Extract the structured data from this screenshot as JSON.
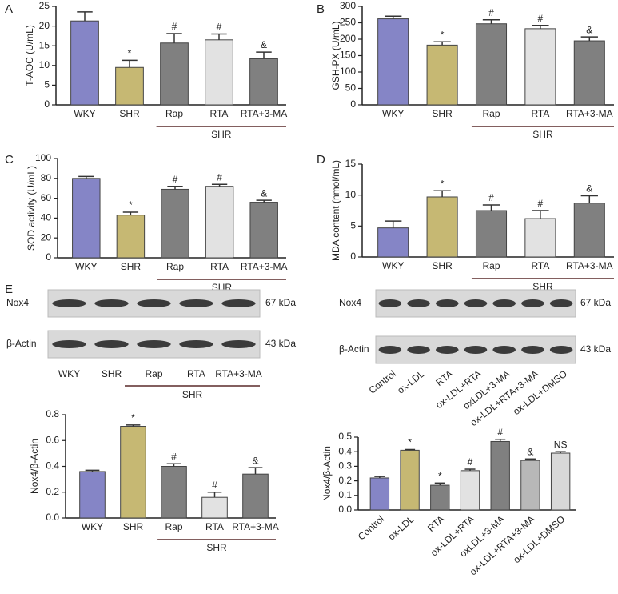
{
  "panels": [
    "A",
    "B",
    "C",
    "D",
    "E"
  ],
  "chart_data": [
    {
      "type": "bar",
      "ylabel": "T-AOC (U/mL)",
      "categories": [
        "WKY",
        "SHR",
        "Rap",
        "RTA",
        "RTA+3-MA"
      ],
      "group_label": "SHR",
      "values": [
        21.3,
        9.5,
        15.7,
        16.5,
        11.7
      ],
      "errors": [
        2.3,
        1.8,
        2.4,
        1.5,
        1.7
      ],
      "markers": [
        null,
        "*",
        "#",
        "#",
        "&"
      ],
      "colors": [
        "#8585c6",
        "#c6b873",
        "#808080",
        "#e2e2e2",
        "#808080"
      ],
      "ylim": [
        0,
        25
      ],
      "yticks": [
        0,
        5,
        10,
        15,
        20,
        25
      ]
    },
    {
      "type": "bar",
      "ylabel": "GSH-PX (U/mL)",
      "categories": [
        "WKY",
        "SHR",
        "Rap",
        "RTA",
        "RTA+3-MA"
      ],
      "group_label": "SHR",
      "values": [
        262,
        182,
        247,
        232,
        195
      ],
      "errors": [
        8,
        10,
        12,
        10,
        12
      ],
      "markers": [
        null,
        "*",
        "#",
        "#",
        "&"
      ],
      "colors": [
        "#8585c6",
        "#c6b873",
        "#808080",
        "#e2e2e2",
        "#808080"
      ],
      "ylim": [
        0,
        300
      ],
      "yticks": [
        0,
        50,
        100,
        150,
        200,
        250,
        300
      ]
    },
    {
      "type": "bar",
      "ylabel": "SOD activity (U/mL)",
      "categories": [
        "WKY",
        "SHR",
        "Rap",
        "RTA",
        "RTA+3-MA"
      ],
      "group_label": "SHR",
      "values": [
        80,
        43,
        69,
        72,
        56
      ],
      "errors": [
        2,
        3,
        3,
        2,
        2
      ],
      "markers": [
        null,
        "*",
        "#",
        "#",
        "&"
      ],
      "colors": [
        "#8585c6",
        "#c6b873",
        "#808080",
        "#e2e2e2",
        "#808080"
      ],
      "ylim": [
        0,
        100
      ],
      "yticks": [
        0,
        20,
        40,
        60,
        80,
        100
      ]
    },
    {
      "type": "bar",
      "ylabel": "MDA content (nmol/mL)",
      "categories": [
        "WKY",
        "SHR",
        "Rap",
        "RTA",
        "RTA+3-MA"
      ],
      "group_label": "SHR",
      "values": [
        4.7,
        9.7,
        7.5,
        6.2,
        8.7
      ],
      "errors": [
        1.1,
        1.0,
        0.9,
        1.3,
        1.2
      ],
      "markers": [
        null,
        "*",
        "#",
        "#",
        "&"
      ],
      "colors": [
        "#8585c6",
        "#c6b873",
        "#808080",
        "#e2e2e2",
        "#808080"
      ],
      "ylim": [
        0,
        15
      ],
      "yticks": [
        0,
        5,
        10,
        15
      ]
    },
    {
      "type": "bar",
      "ylabel": "Nox4/β-Actin",
      "categories": [
        "WKY",
        "SHR",
        "Rap",
        "RTA",
        "RTA+3-MA"
      ],
      "group_label": "SHR",
      "values": [
        0.36,
        0.71,
        0.4,
        0.16,
        0.34
      ],
      "errors": [
        0.01,
        0.01,
        0.02,
        0.04,
        0.05
      ],
      "markers": [
        null,
        "*",
        "#",
        "#",
        "&"
      ],
      "colors": [
        "#8585c6",
        "#c6b873",
        "#808080",
        "#e2e2e2",
        "#808080"
      ],
      "ylim": [
        0,
        0.8
      ],
      "yticks": [
        {
          "value": 0,
          "label": "0.0"
        },
        0.2,
        0.4,
        0.6,
        0.8
      ]
    },
    {
      "type": "bar",
      "ylabel": "Nox4/β-Actin",
      "categories": [
        "Control",
        "ox-LDL",
        "RTA",
        "ox-LDL+RTA",
        "oxLDL+3-MA",
        "ox-LDL+RTA+3-MA",
        "ox-LDL+DMSO"
      ],
      "values": [
        0.22,
        0.41,
        0.17,
        0.27,
        0.47,
        0.34,
        0.39
      ],
      "errors": [
        0.01,
        0.005,
        0.015,
        0.01,
        0.015,
        0.01,
        0.01
      ],
      "markers": [
        null,
        "*",
        "*",
        "#",
        "#",
        "&",
        "NS"
      ],
      "colors": [
        "#8585c6",
        "#c6b873",
        "#808080",
        "#e2e2e2",
        "#808080",
        "#b8b8b8",
        "#d8d8d8"
      ],
      "ylim": [
        0,
        0.5
      ],
      "yticks": [
        {
          "value": 0,
          "label": "0.0"
        },
        0.1,
        0.2,
        0.3,
        0.4,
        0.5
      ]
    }
  ],
  "blots": [
    {
      "rows": [
        {
          "label": "Nox4",
          "size": "67 kDa"
        },
        {
          "label": "β-Actin",
          "size": "43 kDa"
        }
      ],
      "lanes": [
        "WKY",
        "SHR",
        "Rap",
        "RTA",
        "RTA+3-MA"
      ],
      "group_label": "SHR"
    },
    {
      "rows": [
        {
          "label": "Nox4",
          "size": "67 kDa"
        },
        {
          "label": "β-Actin",
          "size": "43 kDa"
        }
      ],
      "lanes": [
        "Control",
        "ox-LDL",
        "RTA",
        "ox-LDL+RTA",
        "oxLDL+3-MA",
        "ox-LDL+RTA+3-MA",
        "ox-LDL+DMSO"
      ]
    }
  ]
}
